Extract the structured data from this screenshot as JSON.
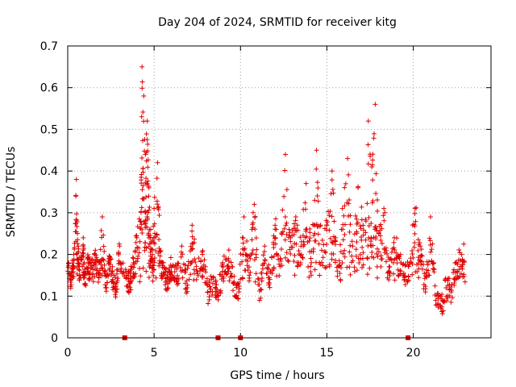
{
  "chart_data": {
    "type": "scatter",
    "title": "Day 204 of 2024, SRMTID for receiver kitg",
    "xlabel": "GPS time / hours",
    "ylabel": "SRMTID / TECUs",
    "xlim": [
      0,
      24.5
    ],
    "ylim": [
      0,
      0.7
    ],
    "x_ticks": [
      0,
      5,
      10,
      15,
      20
    ],
    "x_tick_labels": [
      "0",
      "5",
      "10",
      "15",
      "20"
    ],
    "y_ticks": [
      0,
      0.1,
      0.2,
      0.3,
      0.4,
      0.5,
      0.6,
      0.7
    ],
    "y_tick_labels": [
      "0",
      "0.1",
      "0.2",
      "0.3",
      "0.4",
      "0.5",
      "0.6",
      "0.7"
    ],
    "grid": true,
    "point_color": "#e00000",
    "marker": "+",
    "gap_markers_x": [
      3.3,
      8.7,
      10.0,
      19.7
    ],
    "series": [
      {
        "name": "SRMTID",
        "x": [
          0.0,
          0.2,
          0.35,
          0.5,
          0.6,
          0.7,
          0.9,
          1.0,
          1.2,
          1.4,
          1.6,
          1.8,
          2.0,
          2.2,
          2.4,
          2.6,
          2.8,
          3.0,
          3.4,
          3.6,
          3.8,
          4.0,
          4.2,
          4.3,
          4.4,
          4.5,
          4.6,
          4.7,
          4.8,
          4.9,
          5.0,
          5.2,
          5.4,
          5.6,
          5.8,
          6.0,
          6.3,
          6.6,
          6.9,
          7.2,
          7.5,
          7.8,
          8.1,
          8.4,
          8.7,
          9.0,
          9.3,
          9.6,
          9.9,
          10.2,
          10.5,
          10.8,
          11.1,
          11.4,
          11.7,
          12.0,
          12.3,
          12.6,
          12.9,
          13.2,
          13.5,
          13.8,
          14.1,
          14.4,
          14.7,
          15.0,
          15.3,
          15.6,
          15.9,
          16.2,
          16.5,
          16.8,
          17.1,
          17.4,
          17.6,
          17.8,
          18.0,
          18.3,
          18.6,
          18.9,
          19.2,
          19.5,
          19.8,
          20.1,
          20.4,
          20.7,
          21.0,
          21.3,
          21.6,
          21.9,
          22.2,
          22.5,
          22.8
        ],
        "y": [
          0.16,
          0.14,
          0.2,
          0.38,
          0.22,
          0.15,
          0.24,
          0.13,
          0.19,
          0.17,
          0.21,
          0.15,
          0.29,
          0.12,
          0.18,
          0.14,
          0.11,
          0.22,
          0.15,
          0.13,
          0.18,
          0.24,
          0.28,
          0.65,
          0.58,
          0.44,
          0.52,
          0.36,
          0.26,
          0.2,
          0.31,
          0.42,
          0.18,
          0.15,
          0.13,
          0.17,
          0.14,
          0.22,
          0.12,
          0.27,
          0.16,
          0.2,
          0.11,
          0.13,
          0.1,
          0.17,
          0.19,
          0.13,
          0.11,
          0.29,
          0.17,
          0.32,
          0.09,
          0.22,
          0.14,
          0.27,
          0.19,
          0.44,
          0.24,
          0.29,
          0.22,
          0.37,
          0.18,
          0.45,
          0.21,
          0.27,
          0.4,
          0.16,
          0.31,
          0.43,
          0.22,
          0.36,
          0.27,
          0.52,
          0.41,
          0.56,
          0.25,
          0.31,
          0.16,
          0.24,
          0.19,
          0.14,
          0.18,
          0.31,
          0.22,
          0.11,
          0.29,
          0.09,
          0.07,
          0.12,
          0.11,
          0.18,
          0.2
        ]
      }
    ]
  }
}
